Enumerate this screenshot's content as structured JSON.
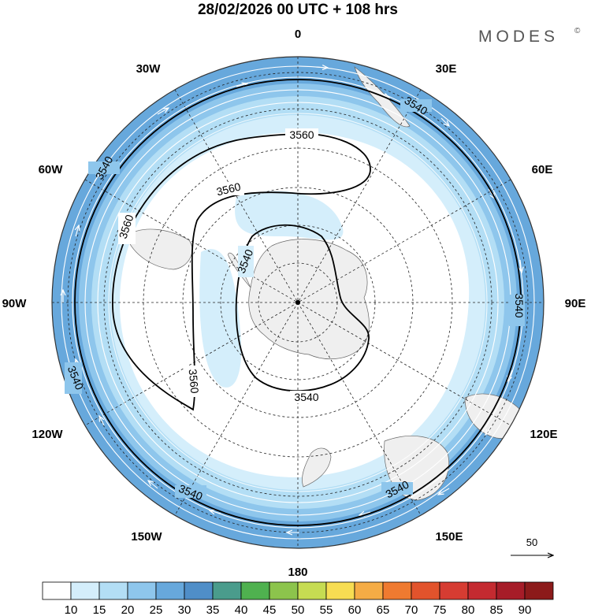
{
  "header": {
    "title": "28/02/2026  00 UTC  + 108 hrs",
    "brand": "MODES",
    "brand_mark": "©"
  },
  "map": {
    "projection": "south-polar-stereographic",
    "longitude_labels": [
      "0",
      "30E",
      "60E",
      "90E",
      "120E",
      "150E",
      "180",
      "150W",
      "120W",
      "90W",
      "60W",
      "30W"
    ],
    "contours": [
      {
        "value": "3540",
        "label": "3540"
      },
      {
        "value": "3560",
        "label": "3560"
      }
    ],
    "vector_reference": {
      "label": "50"
    },
    "shading_palette": [
      "#ffffff",
      "#d4eefb",
      "#b3def5",
      "#8ec6ec",
      "#67a8dc",
      "#4f8ec8",
      "#4a9c8c",
      "#4fb14f",
      "#8cc44c",
      "#c6dc52",
      "#f7dd52",
      "#f5ac45",
      "#ef7a30",
      "#e2532c",
      "#d63c32",
      "#c42a30",
      "#a61c28",
      "#8c1a1a"
    ]
  },
  "colorbar": {
    "labels": [
      "10",
      "15",
      "20",
      "25",
      "30",
      "35",
      "40",
      "45",
      "50",
      "55",
      "60",
      "65",
      "70",
      "75",
      "80",
      "85",
      "90"
    ],
    "colors": [
      "#ffffff",
      "#d4eefb",
      "#b3def5",
      "#8ec6ec",
      "#67a8dc",
      "#4f8ec8",
      "#4a9c8c",
      "#4fb14f",
      "#8cc44c",
      "#c6dc52",
      "#f7dd52",
      "#f5ac45",
      "#ef7a30",
      "#e2532c",
      "#d63c32",
      "#c42a30",
      "#a61c28",
      "#8c1a1a"
    ]
  }
}
